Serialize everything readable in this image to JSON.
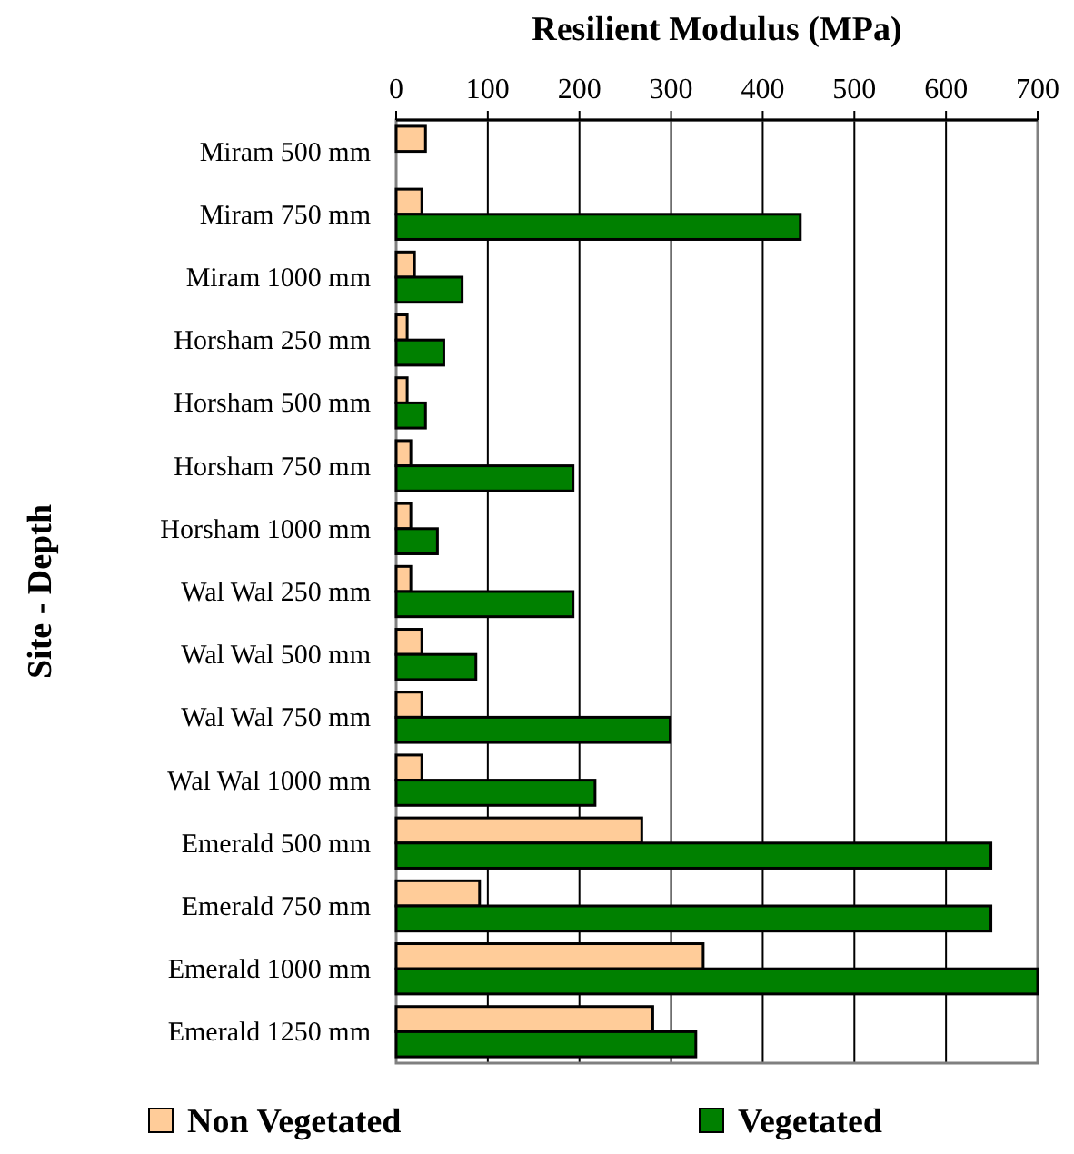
{
  "chart_data": {
    "type": "bar",
    "orientation": "horizontal",
    "title": "Resilient Modulus (MPa)",
    "ylabel": "Site - Depth",
    "categories": [
      "Miram 500 mm",
      "Miram 750 mm",
      "Miram 1000 mm",
      "Horsham 250 mm",
      "Horsham 500 mm",
      "Horsham 750 mm",
      "Horsham 1000 mm",
      "Wal Wal 250 mm",
      "Wal Wal 500 mm",
      "Wal Wal 750 mm",
      "Wal Wal 1000 mm",
      "Emerald 500 mm",
      "Emerald 750 mm",
      "Emerald 1000 mm",
      "Emerald 1250 mm"
    ],
    "series": [
      {
        "name": "Non Vegetated",
        "color": "#ffcc99",
        "values": [
          32,
          28,
          20,
          12,
          12,
          16,
          16,
          16,
          28,
          28,
          28,
          268,
          91,
          335,
          280
        ]
      },
      {
        "name": "Vegetated",
        "color": "#008000",
        "values": [
          null,
          441,
          72,
          52,
          32,
          193,
          45,
          193,
          87,
          299,
          217,
          649,
          649,
          700,
          327
        ]
      }
    ],
    "xlim": [
      0,
      700
    ],
    "xticks": [
      0,
      100,
      200,
      300,
      400,
      500,
      600,
      700
    ],
    "grid": "x",
    "legend": "bottom"
  }
}
